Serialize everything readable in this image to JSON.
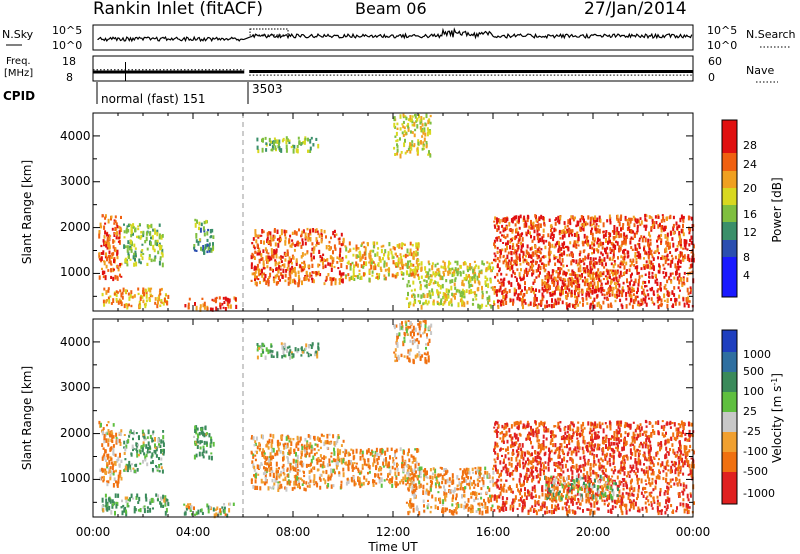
{
  "header": {
    "station": "Rankin Inlet (fitACF)",
    "beam": "Beam 06",
    "date": "27/Jan/2014"
  },
  "panel_noise": {
    "left_label": "N.Sky",
    "right_label": "N.Search",
    "left_ticks": [
      "10^5",
      "10^0"
    ],
    "right_ticks": [
      "10^5",
      "10^0"
    ]
  },
  "panel_freq": {
    "left_label_1": "Freq.",
    "left_label_2": "[MHz]",
    "right_label": "Nave",
    "left_ticks": [
      "18",
      "8"
    ],
    "right_ticks": [
      "60",
      "0"
    ],
    "freq_mhz": [
      {
        "start_h": 0.0,
        "end_h": 6.05,
        "value": 11.4
      },
      {
        "start_h": 6.25,
        "end_h": 24.0,
        "value": 11.6
      }
    ],
    "nave": [
      {
        "start_h": 0.0,
        "end_h": 6.05,
        "value": 27
      },
      {
        "start_h": 6.25,
        "end_h": 24.0,
        "value": 14
      }
    ]
  },
  "cpid": {
    "label": "CPID",
    "modes": [
      {
        "text": "normal (fast) 151",
        "start_h": 0.0
      },
      {
        "text": "3503",
        "start_h": 6.2
      }
    ]
  },
  "power_panel": {
    "ylabel": "Slant Range [km]",
    "yticks": [
      "1000",
      "2000",
      "3000",
      "4000"
    ],
    "colorbar_label": "Power [dB]",
    "colorbar_ticks": [
      "4",
      "8",
      "12",
      "16",
      "20",
      "24",
      "28"
    ]
  },
  "velocity_panel": {
    "ylabel": "Slant Range [km]",
    "yticks": [
      "1000",
      "2000",
      "3000",
      "4000"
    ],
    "colorbar_label": "Velocity [m s",
    "colorbar_label_sup": "-1",
    "colorbar_label_end": "]",
    "colorbar_ticks": [
      "1000",
      "500",
      "100",
      "25",
      "-25",
      "-100",
      "-500",
      "-1000"
    ]
  },
  "x_axis": {
    "label": "Time UT",
    "ticks": [
      "00:00",
      "04:00",
      "08:00",
      "12:00",
      "16:00",
      "20:00",
      "00:00"
    ]
  },
  "chart_data": {
    "type": "heatmap",
    "x_range_hours": [
      0,
      24
    ],
    "y_range_km": [
      180,
      4500
    ],
    "mode_change_hour": 6.1,
    "power_colorscale": [
      "#1a1aff",
      "#2b4fb0",
      "#3a8f6a",
      "#7fbf3f",
      "#d8d820",
      "#f0a020",
      "#f06010",
      "#e01010"
    ],
    "velocity_colorscale": [
      "#1f3fbf",
      "#2f6fa0",
      "#3a8a5a",
      "#5fbf3f",
      "#c8c8c8",
      "#f0a030",
      "#f07010",
      "#e02020"
    ],
    "echo_regions": [
      {
        "t0": 0.2,
        "t1": 1.1,
        "r0": 900,
        "r1": 2300,
        "power_db": 26,
        "velocity": -100
      },
      {
        "t0": 1.2,
        "t1": 2.8,
        "r0": 1200,
        "r1": 2100,
        "power_db": 14,
        "velocity": 100
      },
      {
        "t0": 0.3,
        "t1": 3.0,
        "r0": 300,
        "r1": 700,
        "power_db": 22,
        "velocity": 100
      },
      {
        "t0": 3.6,
        "t1": 5.7,
        "r0": 250,
        "r1": 500,
        "power_db": 28,
        "velocity": 25
      },
      {
        "t0": 4.0,
        "t1": 4.8,
        "r0": 1500,
        "r1": 2200,
        "power_db": 12,
        "velocity": 100
      },
      {
        "t0": 6.3,
        "t1": 10.0,
        "r0": 800,
        "r1": 2000,
        "power_db": 26,
        "velocity": -100
      },
      {
        "t0": 10.0,
        "t1": 13.0,
        "r0": 900,
        "r1": 1700,
        "power_db": 20,
        "velocity": -100
      },
      {
        "t0": 12.5,
        "t1": 16.0,
        "r0": 300,
        "r1": 1300,
        "power_db": 18,
        "velocity": -100
      },
      {
        "t0": 16.0,
        "t1": 24.0,
        "r0": 300,
        "r1": 2300,
        "power_db": 28,
        "velocity": -500
      },
      {
        "t0": 18.0,
        "t1": 21.0,
        "r0": 600,
        "r1": 1100,
        "power_db": 26,
        "velocity": 25
      },
      {
        "t0": 6.5,
        "t1": 9.0,
        "r0": 3700,
        "r1": 4000,
        "power_db": 14,
        "velocity": 100
      },
      {
        "t0": 12.0,
        "t1": 13.5,
        "r0": 3600,
        "r1": 4500,
        "power_db": 18,
        "velocity": -100
      }
    ]
  }
}
